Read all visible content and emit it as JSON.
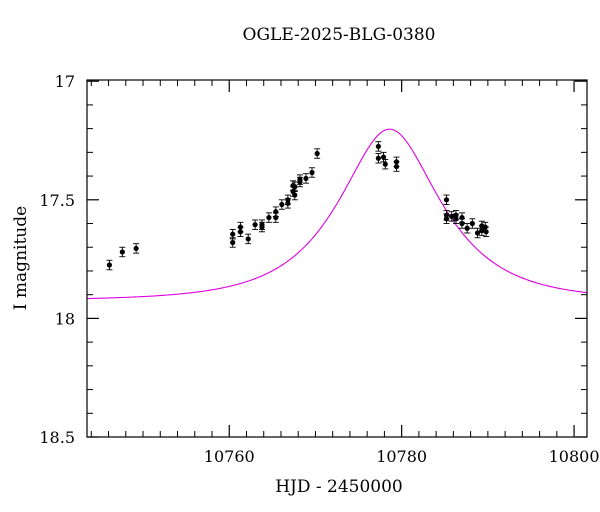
{
  "chart_data": {
    "type": "scatter",
    "title": "OGLE-2025-BLG-0380",
    "xlabel": "HJD - 2450000",
    "ylabel": "I magnitude",
    "xlim": [
      10743.5,
      10801.5
    ],
    "ylim": [
      18.5,
      16.995
    ],
    "y_inverted": true,
    "xticks": [
      10760,
      10780,
      10800
    ],
    "yticks": [
      17,
      17.5,
      18,
      18.5
    ],
    "xticks_minor_step": 2,
    "yticks_minor_step": 0.1,
    "grid": false,
    "colors": {
      "data": "#000000",
      "model": "#e000e0",
      "axes": "#000000"
    },
    "series": [
      {
        "kind": "points_with_errorbars",
        "x": [
          10746.1,
          10747.6,
          10749.2,
          10760.4,
          10760.4,
          10761.3,
          10761.3,
          10762.2,
          10763.0,
          10763.8,
          10763.8,
          10764.6,
          10765.4,
          10765.4,
          10766.1,
          10766.8,
          10766.8,
          10767.4,
          10767.4,
          10767.6,
          10767.6,
          10768.2,
          10768.2,
          10768.9,
          10769.6,
          10770.2,
          10777.3,
          10777.3,
          10777.9,
          10778.1,
          10779.4,
          10779.4,
          10785.2,
          10785.2,
          10785.2,
          10785.8,
          10786.3,
          10786.3,
          10787.0,
          10787.0,
          10787.6,
          10788.2,
          10788.8,
          10789.3,
          10789.3,
          10789.7,
          10789.8
        ],
        "y": [
          17.775,
          17.72,
          17.705,
          17.68,
          17.645,
          17.635,
          17.615,
          17.665,
          17.605,
          17.605,
          17.615,
          17.575,
          17.55,
          17.575,
          17.52,
          17.5,
          17.515,
          17.465,
          17.44,
          17.445,
          17.48,
          17.415,
          17.425,
          17.41,
          17.385,
          17.305,
          17.325,
          17.275,
          17.32,
          17.35,
          17.34,
          17.36,
          17.5,
          17.58,
          17.565,
          17.57,
          17.565,
          17.58,
          17.6,
          17.575,
          17.62,
          17.6,
          17.64,
          17.63,
          17.61,
          17.615,
          17.635
        ],
        "yerr": 0.02
      },
      {
        "kind": "model_curve",
        "t0": 10778.6,
        "tE": 9.5,
        "u0": 0.57,
        "I_baseline": 17.943,
        "flux_offset": 0.017
      }
    ]
  }
}
